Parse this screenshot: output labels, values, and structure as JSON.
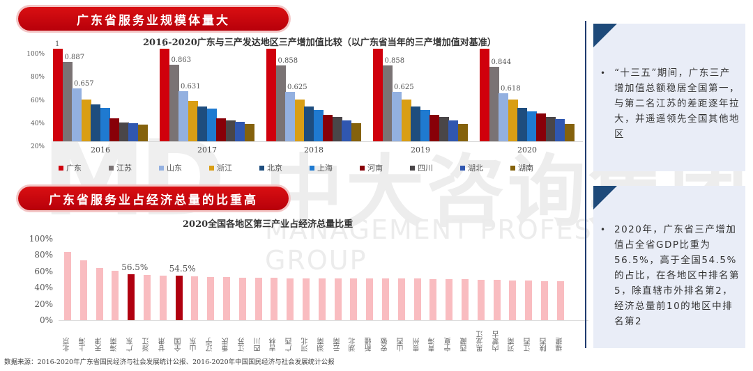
{
  "watermark": {
    "logo": "MD",
    "company_cn": "中大咨询集团",
    "company_en": "MANAGEMENT PROFESSIONAL GROUP"
  },
  "section1": {
    "banner": "广东省服务业规模体量大"
  },
  "section2": {
    "banner": "广东省服务业占经济总量的比重高"
  },
  "right_panel": {
    "box1": {
      "bullet": "•",
      "text": "“十三五”期间，广东三产增加值总额稳居全国第一，与第二名江苏的差距逐年拉大，并遥遥领先全国其他地区"
    },
    "box2": {
      "bullet": "•",
      "text": "2020年，广东省三产增加值占全省GDP比重为56.5%，高于全国54.5%的占比，在各地区中排名第5，除直辖市外排名第2，经济总量前10的地区中排名第2"
    }
  },
  "footer": {
    "source": "数据来源：2016-2020年广东省国民经济与社会发展统计公报、2016-2020年中国国民经济与社会发展统计公报"
  },
  "chart_data": [
    {
      "type": "bar",
      "title": "2016-2020广东与三产发达地区三产增加值比较（以广东省当年的三产增加值对基准）",
      "xlabel": "",
      "ylabel": "",
      "ylim": [
        0.2,
        1.0
      ],
      "yticks": [
        "100%",
        "80%",
        "60%",
        "40%",
        "20%"
      ],
      "grid": false,
      "legend_position": "bottom",
      "categories": [
        "2016",
        "2017",
        "2018",
        "2019",
        "2020"
      ],
      "series": [
        {
          "name": "广东",
          "color": "#d0000c",
          "values": [
            1,
            1,
            1,
            1,
            1
          ],
          "labels": [
            "1",
            "1",
            "1",
            "1",
            "1"
          ]
        },
        {
          "name": "江苏",
          "color": "#7a7374",
          "values": [
            0.887,
            0.863,
            0.858,
            0.858,
            0.844
          ],
          "labels": [
            "0.887",
            "0.863",
            "0.858",
            "0.858",
            "0.844"
          ]
        },
        {
          "name": "山东",
          "color": "#93b0e0",
          "values": [
            0.657,
            0.631,
            0.625,
            0.625,
            0.618
          ],
          "labels": [
            "0.657",
            "0.631",
            "0.625",
            "0.625",
            "0.618"
          ]
        },
        {
          "name": "浙江",
          "color": "#d99e14",
          "values": [
            0.56,
            0.55,
            0.56,
            0.56,
            0.56
          ]
        },
        {
          "name": "北京",
          "color": "#1e4d7e",
          "values": [
            0.52,
            0.5,
            0.5,
            0.5,
            0.49
          ]
        },
        {
          "name": "上海",
          "color": "#1f7ad0",
          "values": [
            0.49,
            0.48,
            0.47,
            0.47,
            0.46
          ]
        },
        {
          "name": "河南",
          "color": "#880008",
          "values": [
            0.4,
            0.4,
            0.43,
            0.43,
            0.44
          ]
        },
        {
          "name": "四川",
          "color": "#4a4648",
          "values": [
            0.36,
            0.38,
            0.41,
            0.41,
            0.41
          ]
        },
        {
          "name": "湖北",
          "color": "#3057b0",
          "values": [
            0.355,
            0.37,
            0.38,
            0.38,
            0.39
          ]
        },
        {
          "name": "湖南",
          "color": "#85620c",
          "values": [
            0.345,
            0.35,
            0.355,
            0.35,
            0.35
          ]
        }
      ]
    },
    {
      "type": "bar",
      "title": "2020全国各地区第三产业占经济总量比重",
      "xlabel": "",
      "ylabel": "",
      "ylim": [
        0,
        100
      ],
      "yticks": [
        "100%",
        "80%",
        "60%",
        "40%",
        "20%",
        "0%"
      ],
      "grid": false,
      "categories": [
        "北京",
        "上海",
        "天津",
        "海南",
        "广东",
        "浙江",
        "甘肃",
        "全国",
        "山东",
        "辽宁",
        "重庆",
        "江苏",
        "四川",
        "吉林",
        "广西",
        "河北",
        "湖南",
        "云南",
        "湖北",
        "新疆",
        "安徽",
        "山西",
        "贵州",
        "青海",
        "宁夏",
        "西藏",
        "黑龙江",
        "内蒙古",
        "河南",
        "江西",
        "陕西",
        "福建"
      ],
      "values": [
        83.8,
        73.1,
        64.4,
        60.4,
        56.5,
        55.8,
        55.1,
        54.5,
        53.6,
        53.4,
        52.8,
        52.5,
        52.4,
        52.3,
        51.7,
        51.7,
        51.6,
        51.5,
        50.9,
        50.9,
        51.3,
        51.2,
        50.9,
        50.8,
        50.3,
        50.4,
        49.9,
        49.6,
        48.7,
        48.5,
        48.2,
        47.5
      ],
      "highlight": [
        "广东",
        "全国"
      ],
      "highlight_color": "#b00010",
      "bar_color": "#f9bcc0",
      "annotations": [
        {
          "category": "广东",
          "text": "56.5%"
        },
        {
          "category": "全国",
          "text": "54.5%"
        }
      ]
    }
  ]
}
